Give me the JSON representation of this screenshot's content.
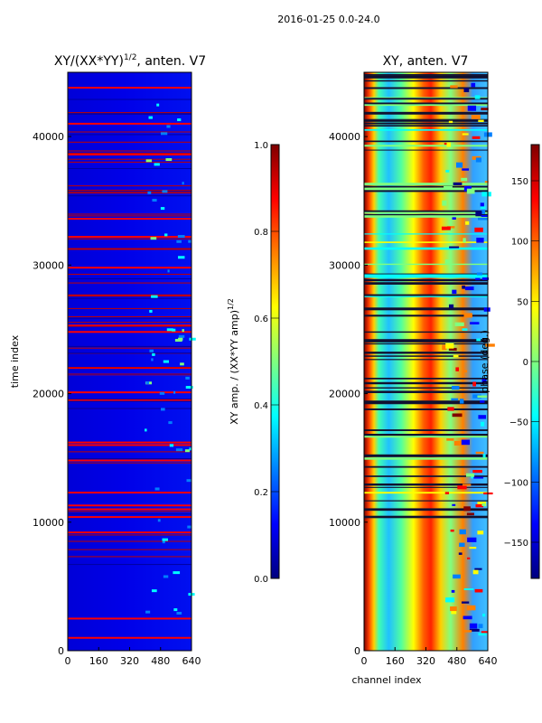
{
  "figure_title": "2016-01-25 0.0-24.0",
  "colors": {
    "jet": [
      "#00007f",
      "#0000ff",
      "#007fff",
      "#00ffff",
      "#7fff7f",
      "#ffff00",
      "#ff7f00",
      "#ff0000",
      "#7f0000"
    ]
  },
  "chart_data": [
    {
      "type": "heatmap",
      "title": "XY/(XX*YY)",
      "title_exponent": "1/2",
      "title_suffix": ", anten. V7",
      "xlabel": "",
      "ylabel": "time index",
      "x_ticks": [
        0,
        160,
        320,
        480,
        640
      ],
      "y_ticks": [
        0,
        10000,
        20000,
        30000,
        40000
      ],
      "xlim": [
        0,
        640
      ],
      "ylim": [
        0,
        45000
      ],
      "colorbar": {
        "label": "XY amp. / (XX*YY amp)",
        "label_exponent": "1/2",
        "range": [
          0.0,
          1.0
        ],
        "ticks": [
          "0.0",
          "0.2",
          "0.4",
          "0.6",
          "0.8",
          "1.0"
        ],
        "tick_values": [
          0.0,
          0.2,
          0.4,
          0.6,
          0.8,
          1.0
        ]
      },
      "description_values": {
        "background_level": 0.1,
        "flagged_row_level": 1.0,
        "flagged_rows_approx": [
          1000,
          2500,
          9200,
          10400,
          11000,
          11300,
          12300,
          14800,
          16000,
          16200,
          19500,
          20100,
          21500,
          22000,
          24800,
          25300,
          29800,
          32200,
          33600,
          38600,
          41000,
          43800
        ]
      }
    },
    {
      "type": "heatmap",
      "title": "XY, anten. V7",
      "xlabel": "channel index",
      "ylabel": "",
      "x_ticks": [
        0,
        160,
        320,
        480,
        640
      ],
      "y_ticks": [
        0,
        10000,
        20000,
        30000,
        40000
      ],
      "xlim": [
        0,
        640
      ],
      "ylim": [
        0,
        45000
      ],
      "colorbar": {
        "label": "phase (deg.)",
        "range": [
          -180,
          180
        ],
        "ticks": [
          "−150",
          "−100",
          "−50",
          "0",
          "50",
          "100",
          "150"
        ],
        "tick_values": [
          -150,
          -100,
          -50,
          0,
          50,
          100,
          150
        ]
      }
    }
  ]
}
